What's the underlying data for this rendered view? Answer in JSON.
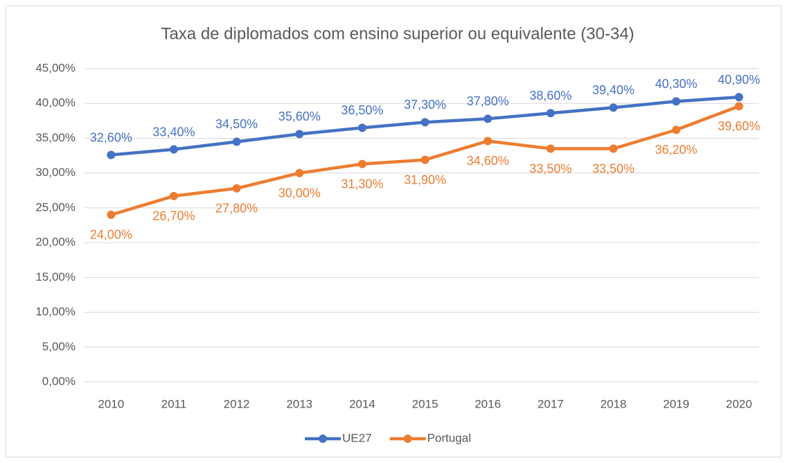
{
  "chart_data": {
    "type": "line",
    "title": "Taxa de diplomados com ensino superior ou equivalente (30-34)",
    "categories": [
      "2010",
      "2011",
      "2012",
      "2013",
      "2014",
      "2015",
      "2016",
      "2017",
      "2018",
      "2019",
      "2020"
    ],
    "series": [
      {
        "name": "UE27",
        "color": "#4472c4",
        "values": [
          32.6,
          33.4,
          34.5,
          35.6,
          36.5,
          37.3,
          37.8,
          38.6,
          39.4,
          40.3,
          40.9
        ],
        "value_labels": [
          "32,60%",
          "33,40%",
          "34,50%",
          "35,60%",
          "36,50%",
          "37,30%",
          "37,80%",
          "38,60%",
          "39,40%",
          "40,30%",
          "40,90%"
        ]
      },
      {
        "name": "Portugal",
        "color": "#ed7d31",
        "values": [
          24.0,
          26.7,
          27.8,
          30.0,
          31.3,
          31.9,
          34.6,
          33.5,
          33.5,
          36.2,
          39.6
        ],
        "value_labels": [
          "24,00%",
          "26,70%",
          "27,80%",
          "30,00%",
          "31,30%",
          "31,90%",
          "34,60%",
          "33,50%",
          "33,50%",
          "36,20%",
          "39,60%"
        ]
      }
    ],
    "ylim": [
      0,
      45
    ],
    "yticks": [
      {
        "value": 0,
        "label": "0,00%"
      },
      {
        "value": 5,
        "label": "5,00%"
      },
      {
        "value": 10,
        "label": "10,00%"
      },
      {
        "value": 15,
        "label": "15,00%"
      },
      {
        "value": 20,
        "label": "20,00%"
      },
      {
        "value": 25,
        "label": "25,00%"
      },
      {
        "value": 30,
        "label": "30,00%"
      },
      {
        "value": 35,
        "label": "35,00%"
      },
      {
        "value": 40,
        "label": "40,00%"
      },
      {
        "value": 45,
        "label": "45,00%"
      }
    ],
    "grid": true,
    "legend": "bottom"
  }
}
